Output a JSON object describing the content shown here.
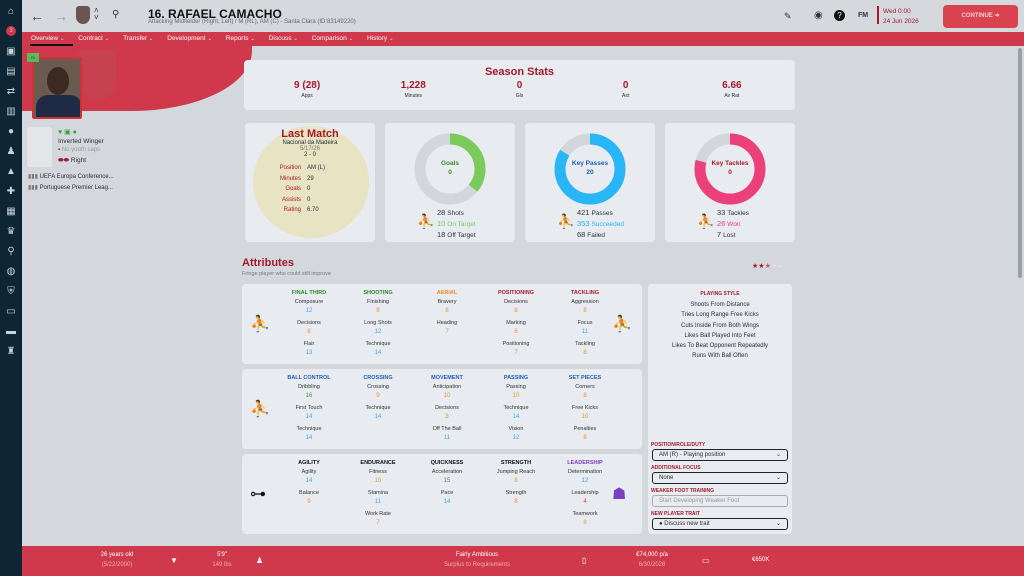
{
  "header": {
    "title": "16. RAFAEL CAMACHO",
    "subtitle": "Attacking Midfielder (Right, Left) / M (RL), AM (C) - Santa Clara (ID:83149220)",
    "date_time": "Wed 0:00",
    "date": "24 Jun 2026",
    "continue_label": "CONTINUE",
    "fm_label": "FM",
    "inbox_count": "3"
  },
  "nav": [
    "Overview",
    "Contract",
    "Transfer",
    "Development",
    "Reports",
    "Discuss",
    "Comparison",
    "History"
  ],
  "profile": {
    "badge": "Fit",
    "role": "Inverted Winger",
    "youth_caps": "No youth caps",
    "foot": "Right",
    "competitions": [
      "UEFA Europa Conference...",
      "Portuguese Premier Leag..."
    ]
  },
  "season": {
    "title": "Season Stats",
    "stats": [
      {
        "v": "9 (28)",
        "l": "Apps"
      },
      {
        "v": "1,228",
        "l": "Minutes"
      },
      {
        "v": "0",
        "l": "Gls"
      },
      {
        "v": "0",
        "l": "Ast"
      },
      {
        "v": "6.66",
        "l": "Av Rat"
      }
    ]
  },
  "last_match": {
    "title": "Last Match",
    "opponent": "Nacional da Madeira",
    "date": "5/17/26",
    "score": "2 - 0",
    "rows": [
      {
        "l": "Position",
        "v": "AM (L)"
      },
      {
        "l": "Minutes",
        "v": "29"
      },
      {
        "l": "Goals",
        "v": "0"
      },
      {
        "l": "Assists",
        "v": "0"
      },
      {
        "l": "Rating",
        "v": "6.70"
      }
    ]
  },
  "donuts": [
    {
      "title": "Goals",
      "value": "0",
      "fraction": 0.36,
      "color": "#7acb5a",
      "label_color": "#3d8f2a",
      "lines": [
        {
          "n": "28",
          "t": "Shots"
        },
        {
          "n": "10",
          "t": "On Target",
          "c": "#7acb5a"
        },
        {
          "n": "18",
          "t": "Off Target"
        }
      ]
    },
    {
      "title": "Key Passes",
      "value": "20",
      "fraction": 0.84,
      "color": "#29b6f6",
      "label_color": "#1e5fb4",
      "lines": [
        {
          "n": "421",
          "t": "Passes"
        },
        {
          "n": "353",
          "t": "Succeeded",
          "c": "#29b6f6"
        },
        {
          "n": "68",
          "t": "Failed"
        }
      ]
    },
    {
      "title": "Key Tackles",
      "value": "0",
      "fraction": 0.79,
      "color": "#ec407a",
      "label_color": "#a5192c",
      "lines": [
        {
          "n": "33",
          "t": "Tackles"
        },
        {
          "n": "26",
          "t": "Won",
          "c": "#ec407a"
        },
        {
          "n": "7",
          "t": "Lost"
        }
      ]
    }
  ],
  "attributes": {
    "title": "Attributes",
    "subtitle": "Fringe player who could still improve",
    "stars": 2.5,
    "groups": [
      [
        {
          "h": "FINAL THIRD",
          "c": "#2e8b2e",
          "a": [
            [
              "Composure",
              "12"
            ],
            [
              "Decisions",
              "8"
            ],
            [
              "Flair",
              "13"
            ]
          ]
        },
        {
          "h": "SHOOTING",
          "c": "#2e8b2e",
          "a": [
            [
              "Finishing",
              "8"
            ],
            [
              "Long Shots",
              "12"
            ],
            [
              "Technique",
              "14"
            ]
          ]
        },
        {
          "h": "AERIAL",
          "c": "#f08c1e",
          "a": [
            [
              "Bravery",
              "8"
            ],
            [
              "Heading",
              "7"
            ]
          ]
        },
        {
          "h": "POSITIONING",
          "c": "#a5192c",
          "a": [
            [
              "Decisions",
              "8"
            ],
            [
              "Marking",
              "6"
            ],
            [
              "Positioning",
              "7"
            ]
          ]
        },
        {
          "h": "TACKLING",
          "c": "#a5192c",
          "a": [
            [
              "Aggression",
              "8"
            ],
            [
              "Focus",
              "11"
            ],
            [
              "Tackling",
              "8"
            ]
          ]
        }
      ],
      [
        {
          "h": "BALL CONTROL",
          "c": "#1e5fb4",
          "a": [
            [
              "Dribbling",
              "16"
            ],
            [
              "First Touch",
              "14"
            ],
            [
              "Technique",
              "14"
            ]
          ]
        },
        {
          "h": "CROSSING",
          "c": "#1e5fb4",
          "a": [
            [
              "Crossing",
              "9"
            ],
            [
              "Technique",
              "14"
            ]
          ]
        },
        {
          "h": "MOVEMENT",
          "c": "#1e5fb4",
          "a": [
            [
              "Anticipation",
              "10"
            ],
            [
              "Decisions",
              "8"
            ],
            [
              "Off The Ball",
              "11"
            ]
          ]
        },
        {
          "h": "PASSING",
          "c": "#1e5fb4",
          "a": [
            [
              "Passing",
              "10"
            ],
            [
              "Technique",
              "14"
            ],
            [
              "Vision",
              "12"
            ]
          ]
        },
        {
          "h": "SET PIECES",
          "c": "#1e5fb4",
          "a": [
            [
              "Corners",
              "8"
            ],
            [
              "Free Kicks",
              "10"
            ],
            [
              "Penalties",
              "8"
            ]
          ]
        }
      ],
      [
        {
          "h": "AGILITY",
          "c": "#111",
          "a": [
            [
              "Agility",
              "14"
            ],
            [
              "Balance",
              "9"
            ]
          ]
        },
        {
          "h": "ENDURANCE",
          "c": "#111",
          "a": [
            [
              "Fitness",
              "10"
            ],
            [
              "Stamina",
              "11"
            ],
            [
              "Work Rate",
              "7"
            ]
          ]
        },
        {
          "h": "QUICKNESS",
          "c": "#111",
          "a": [
            [
              "Acceleration",
              "15"
            ],
            [
              "Pace",
              "14"
            ]
          ]
        },
        {
          "h": "STRENGTH",
          "c": "#111",
          "a": [
            [
              "Jumping Reach",
              "8"
            ],
            [
              "Strength",
              "8"
            ]
          ]
        },
        {
          "h": "LEADERSHIP",
          "c": "#7b3fc4",
          "a": [
            [
              "Determination",
              "12"
            ],
            [
              "Leadership",
              "4"
            ],
            [
              "Teamwork",
              "8"
            ]
          ]
        }
      ]
    ]
  },
  "playing_style": {
    "title": "PLAYING STYLE",
    "items": [
      "Shoots From Distance",
      "Tries Long Range Free Kicks",
      "Cuts Inside From Both Wings",
      "Likes Ball Played Into Feet",
      "Likes To Beat Opponent Repeatedly",
      "Runs With Ball Often"
    ]
  },
  "right_panel": {
    "prd_label": "POSITION/ROLE/DUTY",
    "prd_value": "AM (R) - Playing position",
    "focus_label": "ADDITIONAL FOCUS",
    "focus_value": "None",
    "weak_label": "WEAKER FOOT TRAINING",
    "weak_placeholder": "Start Developing Weaker Foot",
    "trait_label": "NEW PLAYER TRAIT",
    "trait_value": "Discuss new trait"
  },
  "footer": {
    "age": "26 years old",
    "dob": "(5/22/2000)",
    "height": "5'9\"",
    "weight": "149 lbs",
    "personality": "Fairly Ambitious",
    "status": "Surplus to Requirements",
    "wage": "€74,000 p/a",
    "contract_end": "6/30/2028",
    "value": "€650K"
  }
}
